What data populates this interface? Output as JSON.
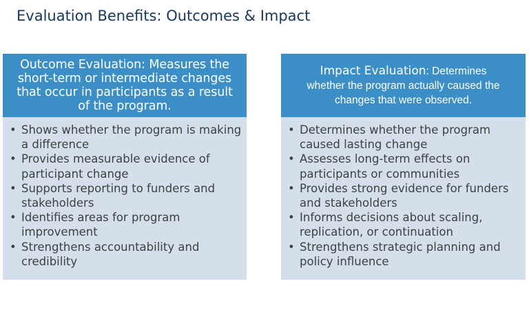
{
  "title": "Evaluation Benefits: Outcomes & Impact",
  "outcome_panel": {
    "header_line1": "Outcome Evaluation: Measures the",
    "header_line2": "short-term or intermediate changes",
    "header_line3": "that occur in participants as a result",
    "header_line4": "of the program.",
    "bullets": [
      "Shows whether the program is making a difference",
      "Provides measurable evidence of participant change",
      "Supports reporting to funders and stakeholders",
      "Identifies areas for program improvement",
      "Strengthens accountability and credibility"
    ]
  },
  "impact_panel": {
    "header_lead": "Impact Evaluation",
    "header_line1_rest": ": Determines",
    "header_line2": "whether the program actually caused the",
    "header_line3": "changes that were observed.",
    "bullets": [
      "Determines whether the program caused lasting change",
      "Assesses long-term effects on participants or communities",
      "Provides strong evidence for funders and stakeholders",
      "Informs decisions about scaling, replication, or continuation",
      "Strengthens strategic planning and policy influence"
    ]
  },
  "bullet_symbol": "•",
  "colors": {
    "title": "#17375e",
    "header_bg": "#3c8fc6",
    "panel_bg": "#d4dfeb",
    "body_text": "#404040"
  }
}
